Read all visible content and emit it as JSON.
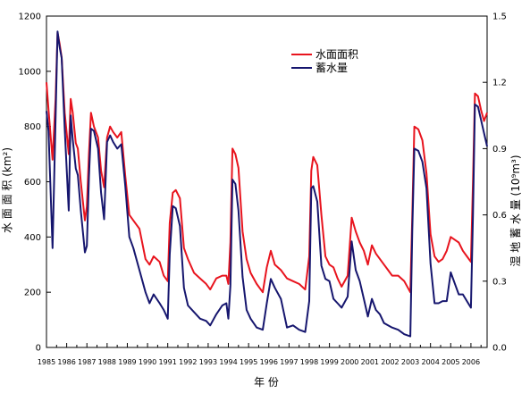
{
  "chart_data": {
    "type": "line",
    "xlabel": "年 份",
    "ylabel_left": "水 面 面 积 (km²)",
    "ylabel_right": "湿 地 蓄 水 量 (10⁹m³)",
    "xlim": [
      1985,
      2006.8
    ],
    "ylim_left": [
      0,
      1200
    ],
    "ylim_right": [
      0,
      1.5
    ],
    "yticks_left": [
      "0",
      "200",
      "400",
      "600",
      "800",
      "1000",
      "1200"
    ],
    "yticks_right": [
      "0.0",
      "0.3",
      "0.6",
      "0.9",
      "1.2",
      "1.5"
    ],
    "xticks": [
      "1985",
      "1986",
      "1987",
      "1988",
      "1989",
      "1990",
      "1991",
      "1992",
      "1993",
      "1994",
      "1995",
      "1996",
      "1997",
      "1998",
      "1999",
      "2000",
      "2001",
      "2002",
      "2003",
      "2004",
      "2005",
      "2006"
    ],
    "legend_position": "top-center",
    "grid": false,
    "series": [
      {
        "name": "水面面积",
        "axis": "left",
        "color": "#e8141e",
        "x": [
          1985.0,
          1985.1,
          1985.3,
          1985.45,
          1985.55,
          1985.65,
          1985.75,
          1985.9,
          1986.1,
          1986.2,
          1986.3,
          1986.45,
          1986.55,
          1986.7,
          1986.9,
          1987.0,
          1987.1,
          1987.2,
          1987.35,
          1987.55,
          1987.7,
          1987.85,
          1988.0,
          1988.15,
          1988.3,
          1988.5,
          1988.7,
          1988.9,
          1989.1,
          1989.3,
          1989.6,
          1989.9,
          1990.1,
          1990.3,
          1990.6,
          1990.8,
          1991.0,
          1991.1,
          1991.25,
          1991.4,
          1991.6,
          1991.8,
          1992.0,
          1992.3,
          1992.6,
          1992.9,
          1993.1,
          1993.4,
          1993.7,
          1993.9,
          1994.0,
          1994.1,
          1994.2,
          1994.35,
          1994.5,
          1994.7,
          1994.9,
          1995.1,
          1995.4,
          1995.7,
          1995.9,
          1996.1,
          1996.3,
          1996.6,
          1996.9,
          1997.2,
          1997.5,
          1997.8,
          1998.0,
          1998.1,
          1998.2,
          1998.4,
          1998.6,
          1998.8,
          1999.0,
          1999.2,
          1999.4,
          1999.6,
          1999.9,
          2000.1,
          2000.3,
          2000.5,
          2000.7,
          2000.9,
          2001.1,
          2001.3,
          2001.5,
          2001.7,
          2001.9,
          2002.1,
          2002.4,
          2002.7,
          2003.0,
          2003.1,
          2003.2,
          2003.4,
          2003.6,
          2003.8,
          2004.0,
          2004.2,
          2004.4,
          2004.6,
          2004.8,
          2005.0,
          2005.2,
          2005.4,
          2005.6,
          2005.8,
          2006.0,
          2006.1,
          2006.2,
          2006.35,
          2006.5,
          2006.65,
          2006.8
        ],
        "y": [
          960,
          860,
          680,
          900,
          1140,
          1100,
          1050,
          850,
          700,
          900,
          850,
          740,
          720,
          600,
          460,
          510,
          700,
          850,
          800,
          760,
          640,
          580,
          760,
          800,
          780,
          760,
          780,
          620,
          480,
          460,
          430,
          320,
          300,
          330,
          310,
          260,
          240,
          450,
          560,
          570,
          540,
          360,
          320,
          270,
          250,
          230,
          210,
          250,
          260,
          260,
          230,
          380,
          720,
          700,
          650,
          420,
          320,
          270,
          230,
          200,
          290,
          350,
          300,
          280,
          250,
          240,
          230,
          210,
          330,
          640,
          690,
          660,
          480,
          330,
          300,
          290,
          250,
          220,
          260,
          470,
          420,
          380,
          350,
          300,
          370,
          340,
          320,
          300,
          280,
          260,
          260,
          240,
          200,
          480,
          800,
          790,
          750,
          630,
          410,
          330,
          310,
          320,
          350,
          400,
          390,
          380,
          350,
          330,
          310,
          600,
          920,
          910,
          860,
          820,
          850
        ]
      },
      {
        "name": "蓄水量",
        "axis": "right",
        "color": "#16166e",
        "x": [
          1985.0,
          1985.1,
          1985.3,
          1985.45,
          1985.55,
          1985.65,
          1985.75,
          1985.9,
          1986.1,
          1986.2,
          1986.3,
          1986.45,
          1986.55,
          1986.7,
          1986.9,
          1987.0,
          1987.1,
          1987.2,
          1987.35,
          1987.55,
          1987.7,
          1987.85,
          1988.0,
          1988.15,
          1988.3,
          1988.5,
          1988.7,
          1988.9,
          1989.1,
          1989.3,
          1989.6,
          1989.9,
          1990.1,
          1990.3,
          1990.6,
          1990.8,
          1991.0,
          1991.1,
          1991.25,
          1991.4,
          1991.6,
          1991.8,
          1992.0,
          1992.3,
          1992.6,
          1992.9,
          1993.1,
          1993.4,
          1993.7,
          1993.9,
          1994.0,
          1994.1,
          1994.2,
          1994.35,
          1994.5,
          1994.7,
          1994.9,
          1995.1,
          1995.4,
          1995.7,
          1995.9,
          1996.1,
          1996.3,
          1996.6,
          1996.9,
          1997.2,
          1997.5,
          1997.8,
          1998.0,
          1998.1,
          1998.2,
          1998.4,
          1998.6,
          1998.8,
          1999.0,
          1999.2,
          1999.4,
          1999.6,
          1999.9,
          2000.1,
          2000.3,
          2000.5,
          2000.7,
          2000.9,
          2001.1,
          2001.3,
          2001.5,
          2001.7,
          2001.9,
          2002.1,
          2002.4,
          2002.7,
          2003.0,
          2003.1,
          2003.2,
          2003.4,
          2003.6,
          2003.8,
          2004.0,
          2004.2,
          2004.4,
          2004.6,
          2004.8,
          2005.0,
          2005.2,
          2005.4,
          2005.6,
          2005.8,
          2006.0,
          2006.1,
          2006.2,
          2006.35,
          2006.5,
          2006.65,
          2006.8
        ],
        "y": [
          1.07,
          0.98,
          0.45,
          1.04,
          1.43,
          1.36,
          1.31,
          0.99,
          0.62,
          1.05,
          0.94,
          0.81,
          0.78,
          0.62,
          0.43,
          0.46,
          0.77,
          0.99,
          0.98,
          0.9,
          0.7,
          0.58,
          0.93,
          0.96,
          0.93,
          0.9,
          0.92,
          0.73,
          0.5,
          0.45,
          0.35,
          0.25,
          0.2,
          0.24,
          0.2,
          0.17,
          0.13,
          0.42,
          0.64,
          0.63,
          0.55,
          0.27,
          0.19,
          0.16,
          0.13,
          0.12,
          0.1,
          0.15,
          0.19,
          0.2,
          0.13,
          0.28,
          0.76,
          0.74,
          0.62,
          0.32,
          0.17,
          0.13,
          0.09,
          0.08,
          0.2,
          0.31,
          0.27,
          0.22,
          0.09,
          0.1,
          0.08,
          0.07,
          0.21,
          0.72,
          0.73,
          0.66,
          0.37,
          0.31,
          0.3,
          0.22,
          0.2,
          0.18,
          0.23,
          0.48,
          0.35,
          0.3,
          0.22,
          0.14,
          0.22,
          0.17,
          0.15,
          0.11,
          0.1,
          0.09,
          0.08,
          0.06,
          0.05,
          0.53,
          0.9,
          0.89,
          0.84,
          0.72,
          0.38,
          0.2,
          0.2,
          0.21,
          0.21,
          0.34,
          0.29,
          0.24,
          0.24,
          0.21,
          0.18,
          0.6,
          1.1,
          1.09,
          1.03,
          0.97,
          0.91
        ]
      }
    ]
  }
}
